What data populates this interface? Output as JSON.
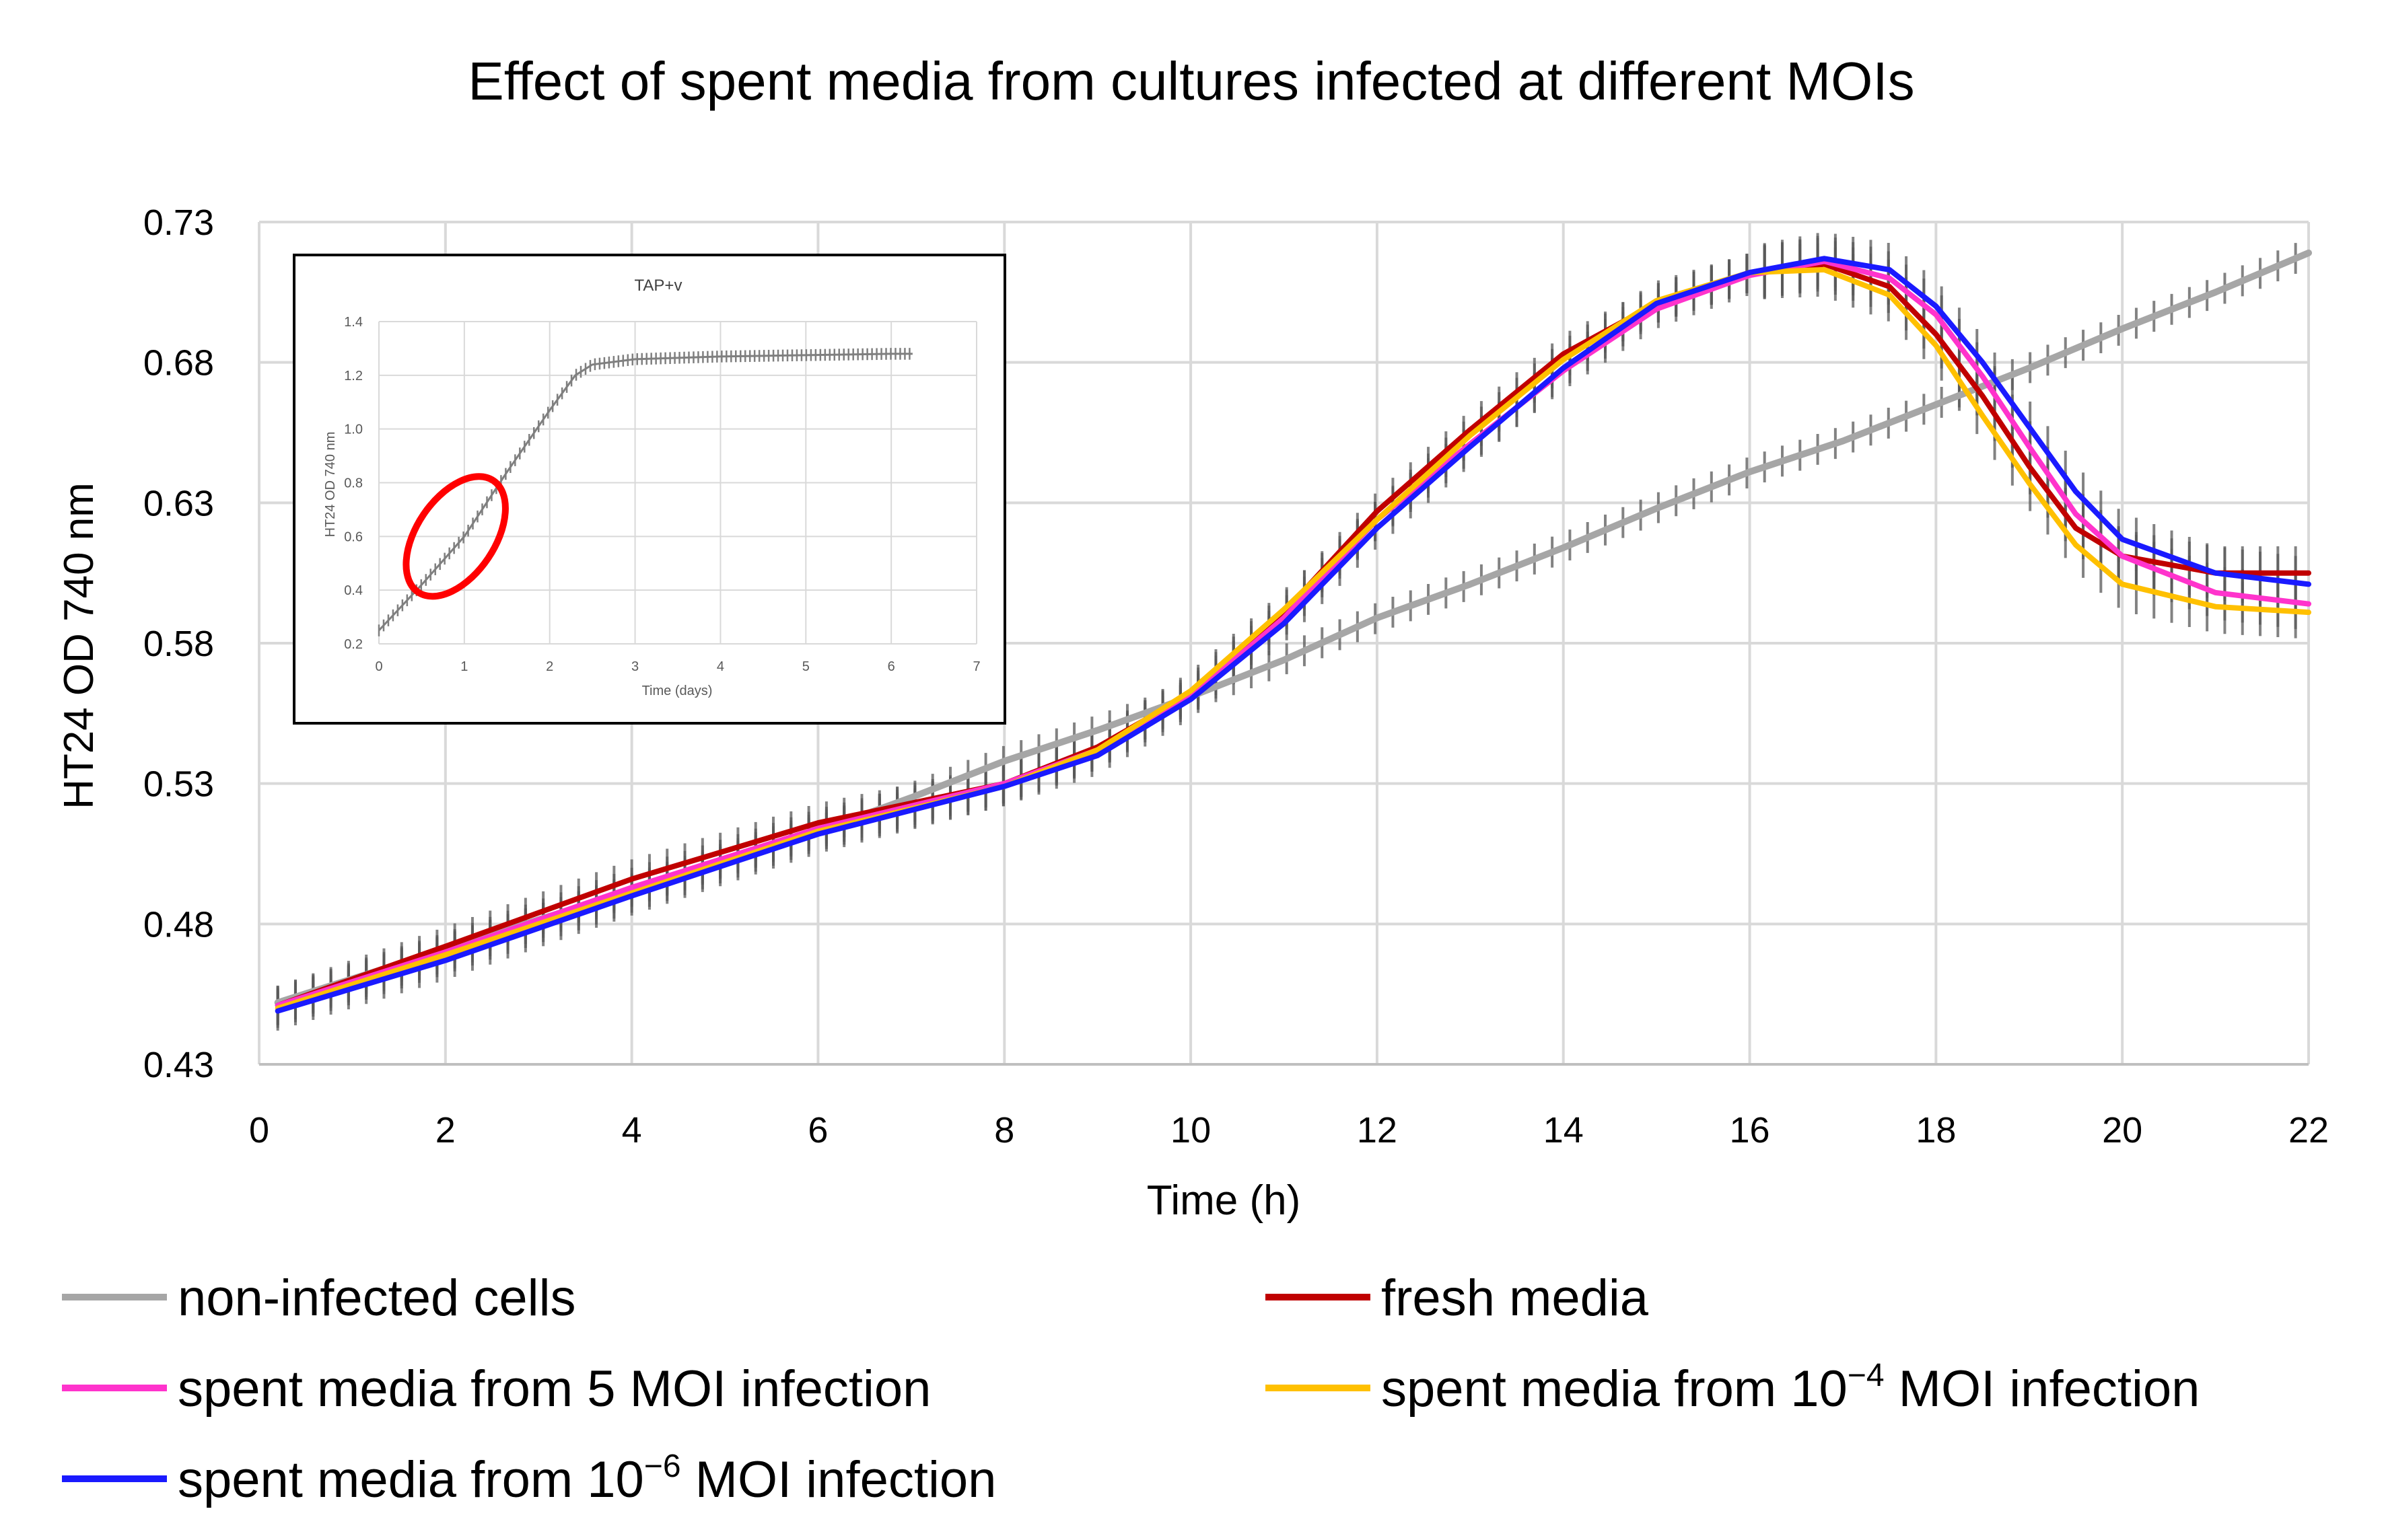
{
  "chart_data": {
    "type": "line",
    "title": "Effect of spent media from cultures infected at different MOIs",
    "xlabel": "Time (h)",
    "ylabel": "HT24 OD 740 nm",
    "xlim": [
      0,
      22
    ],
    "ylim": [
      0.43,
      0.73
    ],
    "x_ticks": [
      0,
      2,
      4,
      6,
      8,
      10,
      12,
      14,
      16,
      18,
      20,
      22
    ],
    "x_tick_labels": [
      "0",
      "2",
      "4",
      "6",
      "8",
      "10",
      "12",
      "14",
      "16",
      "18",
      "20",
      "22"
    ],
    "y_ticks": [
      0.43,
      0.48,
      0.53,
      0.58,
      0.63,
      0.68,
      0.73
    ],
    "y_tick_labels": [
      "0.43",
      "0.48",
      "0.53",
      "0.58",
      "0.63",
      "0.68",
      "0.73"
    ],
    "grid": true,
    "legend_position": "bottom",
    "error_bars": true,
    "series": [
      {
        "name": "non-infected cells",
        "color": "#a6a6a6",
        "x": [
          0.2,
          2,
          4,
          6,
          7,
          8,
          9,
          10,
          11,
          12,
          13,
          14,
          15,
          16,
          17,
          18,
          19,
          20,
          21,
          22
        ],
        "y": [
          0.452,
          0.471,
          0.492,
          0.513,
          0.525,
          0.538,
          0.549,
          0.561,
          0.574,
          0.589,
          0.601,
          0.614,
          0.628,
          0.641,
          0.652,
          0.665,
          0.678,
          0.692,
          0.705,
          0.719
        ]
      },
      {
        "name": "fresh media",
        "color": "#c00000",
        "x": [
          0.2,
          2,
          4,
          6,
          8,
          9,
          10,
          11,
          12,
          13,
          14,
          15,
          16,
          16.8,
          17.5,
          18,
          18.5,
          19,
          19.5,
          20,
          21,
          22
        ],
        "y": [
          0.451,
          0.472,
          0.496,
          0.516,
          0.53,
          0.543,
          0.562,
          0.591,
          0.627,
          0.656,
          0.683,
          0.701,
          0.712,
          0.715,
          0.707,
          0.69,
          0.668,
          0.643,
          0.621,
          0.611,
          0.605,
          0.605
        ]
      },
      {
        "name": "spent media from 5 MOI infection",
        "color": "#ff33cc",
        "x": [
          0.2,
          2,
          4,
          6,
          8,
          9,
          10,
          11,
          12,
          13,
          14,
          15,
          16,
          16.8,
          17.5,
          18,
          18.5,
          19,
          19.5,
          20,
          21,
          22
        ],
        "y": [
          0.451,
          0.47,
          0.493,
          0.514,
          0.53,
          0.542,
          0.561,
          0.589,
          0.624,
          0.651,
          0.677,
          0.699,
          0.711,
          0.716,
          0.71,
          0.697,
          0.675,
          0.65,
          0.626,
          0.611,
          0.598,
          0.594
        ]
      },
      {
        "name": "spent media from 10⁻⁴ MOI infection",
        "color": "#ffc000",
        "x": [
          0.2,
          2,
          4,
          6,
          8,
          9,
          10,
          11,
          12,
          13,
          14,
          15,
          16,
          16.8,
          17.5,
          18,
          18.5,
          19,
          19.5,
          20,
          21,
          22
        ],
        "y": [
          0.45,
          0.469,
          0.491,
          0.513,
          0.529,
          0.542,
          0.563,
          0.592,
          0.624,
          0.654,
          0.681,
          0.702,
          0.712,
          0.713,
          0.704,
          0.686,
          0.661,
          0.637,
          0.615,
          0.601,
          0.593,
          0.591
        ]
      },
      {
        "name": "spent media from 10⁻⁶ MOI infection",
        "color": "#1a1aff",
        "x": [
          0.2,
          2,
          4,
          6,
          8,
          9,
          10,
          11,
          12,
          13,
          14,
          15,
          16,
          16.8,
          17.5,
          18,
          18.5,
          19,
          19.5,
          20,
          21,
          22
        ],
        "y": [
          0.449,
          0.467,
          0.49,
          0.512,
          0.529,
          0.54,
          0.56,
          0.587,
          0.621,
          0.65,
          0.678,
          0.701,
          0.712,
          0.717,
          0.713,
          0.7,
          0.68,
          0.657,
          0.634,
          0.617,
          0.605,
          0.601
        ]
      }
    ],
    "legend_entries": [
      {
        "series": 0,
        "text": "non-infected cells"
      },
      {
        "series": 1,
        "text": "fresh media"
      },
      {
        "series": 2,
        "text": "spent media from 5 MOI infection"
      },
      {
        "series": 3,
        "prefix": "spent media from 10",
        "sup": "−4",
        "suffix": " MOI infection"
      },
      {
        "series": 4,
        "prefix": "spent media from 10",
        "sup": "−6",
        "suffix": " MOI infection"
      }
    ],
    "inset": {
      "type": "line",
      "title": "TAP+v",
      "xlabel": "Time (days)",
      "ylabel": "HT24 OD 740 nm",
      "xlim": [
        0,
        7
      ],
      "ylim": [
        0.2,
        1.4
      ],
      "x_tick_labels": [
        "0",
        "1",
        "2",
        "3",
        "4",
        "5",
        "6",
        "7"
      ],
      "y_ticks": [
        0.2,
        0.4,
        0.6,
        0.8,
        1.0,
        1.2,
        1.4
      ],
      "y_tick_labels": [
        "0.2",
        "0.4",
        "0.6",
        "0.8",
        "1.0",
        "1.2",
        "1.4"
      ],
      "color": "#7f7f7f",
      "highlight_color": "#ff0000",
      "highlight_center": [
        0.9,
        0.6
      ],
      "x": [
        0,
        0.5,
        1.0,
        1.5,
        2.0,
        2.3,
        2.5,
        3,
        4,
        5,
        6,
        6.25
      ],
      "y": [
        0.25,
        0.42,
        0.6,
        0.84,
        1.07,
        1.2,
        1.24,
        1.26,
        1.27,
        1.275,
        1.28,
        1.28
      ]
    }
  }
}
